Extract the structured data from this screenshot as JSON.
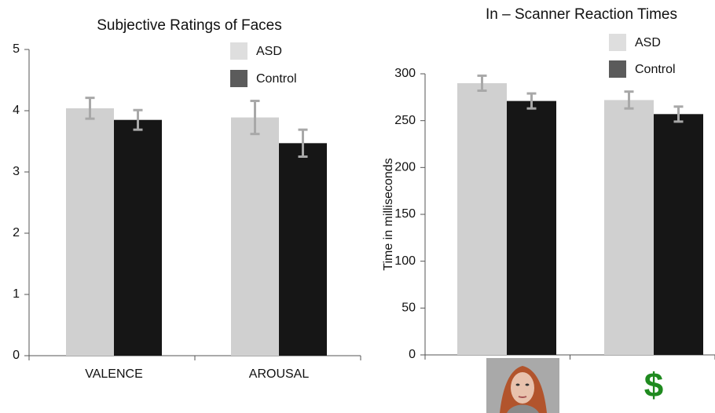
{
  "chart_data": [
    {
      "type": "bar",
      "title": "Subjective Ratings of Faces",
      "categories": [
        "VALENCE",
        "AROUSAL"
      ],
      "series": [
        {
          "name": "ASD",
          "color": "#d0d0d0",
          "values": [
            4.04,
            3.89
          ],
          "errors": [
            0.17,
            0.27
          ]
        },
        {
          "name": "Control",
          "color": "#161616",
          "values": [
            3.85,
            3.47
          ],
          "errors": [
            0.16,
            0.22
          ]
        }
      ],
      "ylim": [
        0,
        5
      ],
      "yticks": [
        0,
        1,
        2,
        3,
        4,
        5
      ],
      "error_color": "#a8a8a8"
    },
    {
      "type": "bar",
      "title": "In – Scanner Reaction Times",
      "y_label": "Time in milliseconds",
      "categories": [
        null,
        "$"
      ],
      "series": [
        {
          "name": "ASD",
          "color": "#d0d0d0",
          "values": [
            290,
            272
          ],
          "errors": [
            8,
            9
          ]
        },
        {
          "name": "Control",
          "color": "#161616",
          "values": [
            271,
            257
          ],
          "errors": [
            8,
            8
          ]
        }
      ],
      "ylim": [
        0,
        300
      ],
      "yticks": [
        0,
        50,
        100,
        150,
        200,
        250,
        300
      ],
      "error_color": "#a8a8a8"
    }
  ]
}
